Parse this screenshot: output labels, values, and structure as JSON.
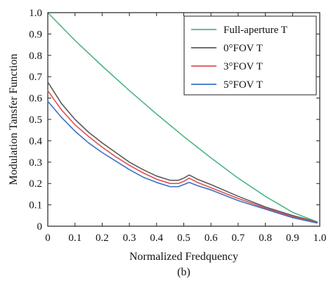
{
  "caption": "(b)",
  "chart_data": {
    "type": "line",
    "xlabel": "Normalized Fredquency",
    "ylabel": "Modulation Tansfer Function",
    "xlim": [
      0,
      1.0
    ],
    "ylim": [
      0,
      1.0
    ],
    "x_ticks": [
      "0",
      "0.1",
      "0.2",
      "0.3",
      "0.4",
      "0.5",
      "0.6",
      "0.7",
      "0.8",
      "0.9",
      "1.0"
    ],
    "y_ticks": [
      "0",
      "0.1",
      "0.2",
      "0.3",
      "0.4",
      "0.5",
      "0.6",
      "0.7",
      "0.8",
      "0.9",
      "1.0"
    ],
    "grid": false,
    "legend_position": "top-right",
    "series": [
      {
        "name": "Full-aperture T",
        "color": "#4cb581",
        "x": [
          0,
          0.1,
          0.2,
          0.3,
          0.4,
          0.5,
          0.6,
          0.7,
          0.8,
          0.9,
          0.99
        ],
        "values": [
          1.0,
          0.87,
          0.75,
          0.635,
          0.525,
          0.42,
          0.32,
          0.225,
          0.14,
          0.065,
          0.02
        ]
      },
      {
        "name": "0°FOV T",
        "color": "#5a5a5a",
        "x": [
          0,
          0.05,
          0.1,
          0.15,
          0.2,
          0.25,
          0.3,
          0.35,
          0.4,
          0.45,
          0.48,
          0.5,
          0.52,
          0.55,
          0.6,
          0.7,
          0.8,
          0.9,
          0.99
        ],
        "values": [
          0.675,
          0.575,
          0.5,
          0.44,
          0.39,
          0.345,
          0.3,
          0.265,
          0.235,
          0.215,
          0.215,
          0.225,
          0.24,
          0.22,
          0.195,
          0.14,
          0.09,
          0.05,
          0.02
        ]
      },
      {
        "name": "3°FOV T",
        "color": "#e05050",
        "x": [
          0,
          0.05,
          0.1,
          0.15,
          0.2,
          0.25,
          0.3,
          0.35,
          0.4,
          0.45,
          0.48,
          0.5,
          0.52,
          0.55,
          0.6,
          0.7,
          0.8,
          0.9,
          0.99
        ],
        "values": [
          0.635,
          0.545,
          0.475,
          0.42,
          0.37,
          0.325,
          0.285,
          0.25,
          0.22,
          0.2,
          0.2,
          0.21,
          0.225,
          0.205,
          0.18,
          0.13,
          0.085,
          0.045,
          0.018
        ]
      },
      {
        "name": "5°FOV T",
        "color": "#3a6fc4",
        "x": [
          0,
          0.05,
          0.1,
          0.15,
          0.2,
          0.25,
          0.3,
          0.35,
          0.4,
          0.45,
          0.48,
          0.5,
          0.52,
          0.55,
          0.6,
          0.7,
          0.8,
          0.9,
          0.99
        ],
        "values": [
          0.585,
          0.51,
          0.445,
          0.39,
          0.345,
          0.305,
          0.265,
          0.23,
          0.205,
          0.185,
          0.185,
          0.195,
          0.205,
          0.19,
          0.17,
          0.12,
          0.08,
          0.04,
          0.015
        ]
      }
    ]
  }
}
